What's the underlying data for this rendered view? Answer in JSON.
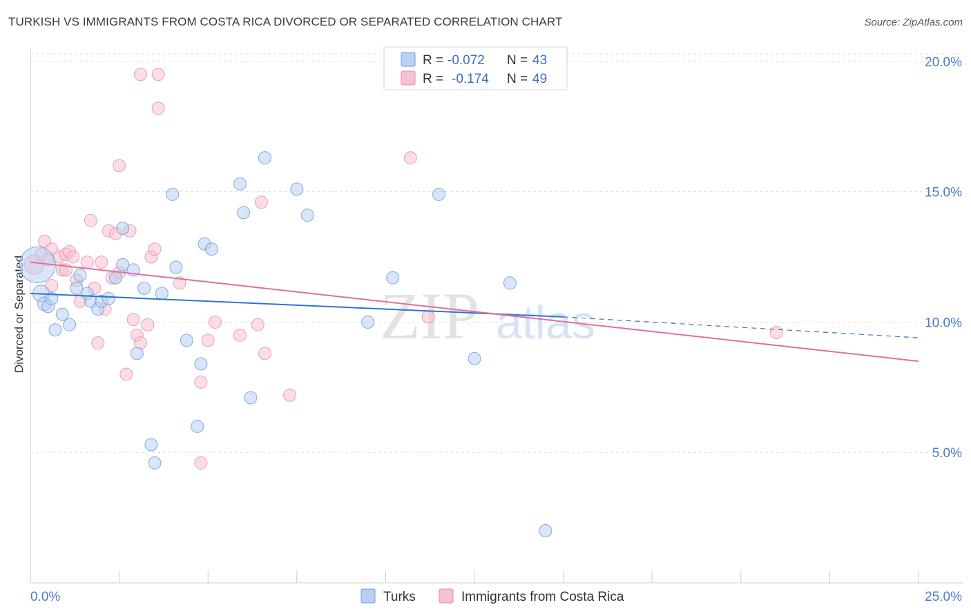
{
  "header": {
    "title": "TURKISH VS IMMIGRANTS FROM COSTA RICA DIVORCED OR SEPARATED CORRELATION CHART",
    "source": "Source: ZipAtlas.com"
  },
  "watermark": {
    "zip": "ZIP",
    "atlas": "atlas"
  },
  "colors": {
    "turks_fill": "#b9d0f2",
    "turks_stroke": "#6f9bd8",
    "turks_line": "#2f74d0",
    "cr_fill": "#f7c1d0",
    "cr_stroke": "#e48aa6",
    "cr_line": "#e0709a",
    "tick_text": "#4a7cc9",
    "grid": "#dddddd"
  },
  "legend": {
    "rows": [
      {
        "r_label": "R =",
        "r_value": "-0.072",
        "n_label": "N =",
        "n_value": "43"
      },
      {
        "r_label": "R =",
        "r_value": "-0.174",
        "n_label": "N =",
        "n_value": "49"
      }
    ]
  },
  "bottom_legend": {
    "turks": "Turks",
    "costa_rica": "Immigrants from Costa Rica"
  },
  "chart_data": {
    "type": "scatter",
    "xlabel": "",
    "ylabel": "Divorced or Separated",
    "xlim": [
      0,
      25
    ],
    "ylim": [
      0,
      20.5
    ],
    "x_tick_labels": [
      "0.0%",
      "25.0%"
    ],
    "y_ticks": [
      5,
      10,
      15,
      20
    ],
    "y_tick_labels": [
      "5.0%",
      "10.0%",
      "15.0%",
      "20.0%"
    ],
    "grid": true,
    "legend_position": "top-center",
    "series": [
      {
        "name": "Turks",
        "trend": {
          "x0": 0,
          "y0": 11.1,
          "x1": 15,
          "y1": 10.2,
          "dashed_to_x": 25,
          "dashed_to_y": 9.4
        },
        "points": [
          [
            0.2,
            12.2,
            26
          ],
          [
            0.3,
            11.1,
            12
          ],
          [
            0.4,
            10.7,
            10
          ],
          [
            0.5,
            10.6,
            9
          ],
          [
            0.6,
            10.9,
            9
          ],
          [
            0.7,
            9.7,
            9
          ],
          [
            0.9,
            10.3,
            9
          ],
          [
            1.1,
            9.9,
            9
          ],
          [
            1.3,
            11.3,
            9
          ],
          [
            1.4,
            11.8,
            9
          ],
          [
            1.6,
            11.1,
            9
          ],
          [
            1.7,
            10.8,
            9
          ],
          [
            1.9,
            10.5,
            9
          ],
          [
            2.0,
            10.8,
            9
          ],
          [
            2.2,
            10.9,
            9
          ],
          [
            2.4,
            11.7,
            9
          ],
          [
            2.6,
            13.6,
            9
          ],
          [
            2.6,
            12.2,
            9
          ],
          [
            2.9,
            12.0,
            9
          ],
          [
            3.0,
            8.8,
            9
          ],
          [
            3.2,
            11.3,
            9
          ],
          [
            3.4,
            5.3,
            9
          ],
          [
            3.5,
            4.6,
            9
          ],
          [
            3.7,
            11.1,
            9
          ],
          [
            4.0,
            14.9,
            9
          ],
          [
            4.1,
            12.1,
            9
          ],
          [
            4.4,
            9.3,
            9
          ],
          [
            4.7,
            6.0,
            9
          ],
          [
            4.8,
            8.4,
            9
          ],
          [
            4.9,
            13.0,
            9
          ],
          [
            5.1,
            12.8,
            9
          ],
          [
            5.9,
            15.3,
            9
          ],
          [
            6.0,
            14.2,
            9
          ],
          [
            6.2,
            7.1,
            9
          ],
          [
            6.6,
            16.3,
            9
          ],
          [
            7.5,
            15.1,
            9
          ],
          [
            7.8,
            14.1,
            9
          ],
          [
            9.5,
            10.0,
            9
          ],
          [
            10.2,
            11.7,
            9
          ],
          [
            11.5,
            14.9,
            9
          ],
          [
            12.5,
            8.6,
            9
          ],
          [
            13.5,
            11.5,
            9
          ],
          [
            14.5,
            2.0,
            9
          ]
        ]
      },
      {
        "name": "Immigrants from Costa Rica",
        "trend": {
          "x0": 0,
          "y0": 12.3,
          "x1": 25,
          "y1": 8.5
        },
        "points": [
          [
            0.1,
            12.2,
            14
          ],
          [
            0.3,
            12.6,
            9
          ],
          [
            0.4,
            13.1,
            9
          ],
          [
            0.5,
            12.4,
            9
          ],
          [
            0.6,
            12.8,
            9
          ],
          [
            0.6,
            11.4,
            9
          ],
          [
            0.8,
            12.5,
            9
          ],
          [
            0.9,
            12.0,
            9
          ],
          [
            1.0,
            12.6,
            9
          ],
          [
            1.1,
            12.7,
            9
          ],
          [
            1.2,
            12.5,
            9
          ],
          [
            1.3,
            11.6,
            9
          ],
          [
            1.4,
            10.8,
            9
          ],
          [
            1.6,
            12.3,
            9
          ],
          [
            1.7,
            13.9,
            9
          ],
          [
            1.8,
            11.3,
            9
          ],
          [
            1.9,
            9.2,
            9
          ],
          [
            2.0,
            12.3,
            9
          ],
          [
            2.1,
            10.5,
            9
          ],
          [
            2.2,
            13.5,
            9
          ],
          [
            2.3,
            11.7,
            9
          ],
          [
            2.4,
            13.4,
            9
          ],
          [
            2.5,
            11.9,
            9
          ],
          [
            2.5,
            16.0,
            9
          ],
          [
            2.7,
            8.0,
            9
          ],
          [
            2.8,
            13.5,
            9
          ],
          [
            2.9,
            10.1,
            9
          ],
          [
            3.0,
            9.5,
            9
          ],
          [
            3.1,
            9.2,
            9
          ],
          [
            3.1,
            19.5,
            9
          ],
          [
            3.3,
            9.9,
            9
          ],
          [
            3.4,
            12.5,
            9
          ],
          [
            3.5,
            12.8,
            9
          ],
          [
            3.6,
            18.2,
            9
          ],
          [
            3.6,
            19.5,
            9
          ],
          [
            4.2,
            11.5,
            9
          ],
          [
            4.8,
            7.7,
            9
          ],
          [
            4.8,
            4.6,
            9
          ],
          [
            5.0,
            9.3,
            9
          ],
          [
            5.2,
            10.0,
            9
          ],
          [
            5.9,
            9.5,
            9
          ],
          [
            6.4,
            9.9,
            9
          ],
          [
            6.5,
            14.6,
            9
          ],
          [
            6.6,
            8.8,
            9
          ],
          [
            7.3,
            7.2,
            9
          ],
          [
            10.7,
            16.3,
            9
          ],
          [
            11.2,
            10.2,
            9
          ],
          [
            21.0,
            9.6,
            9
          ],
          [
            1.0,
            12.0,
            9
          ]
        ]
      }
    ]
  }
}
